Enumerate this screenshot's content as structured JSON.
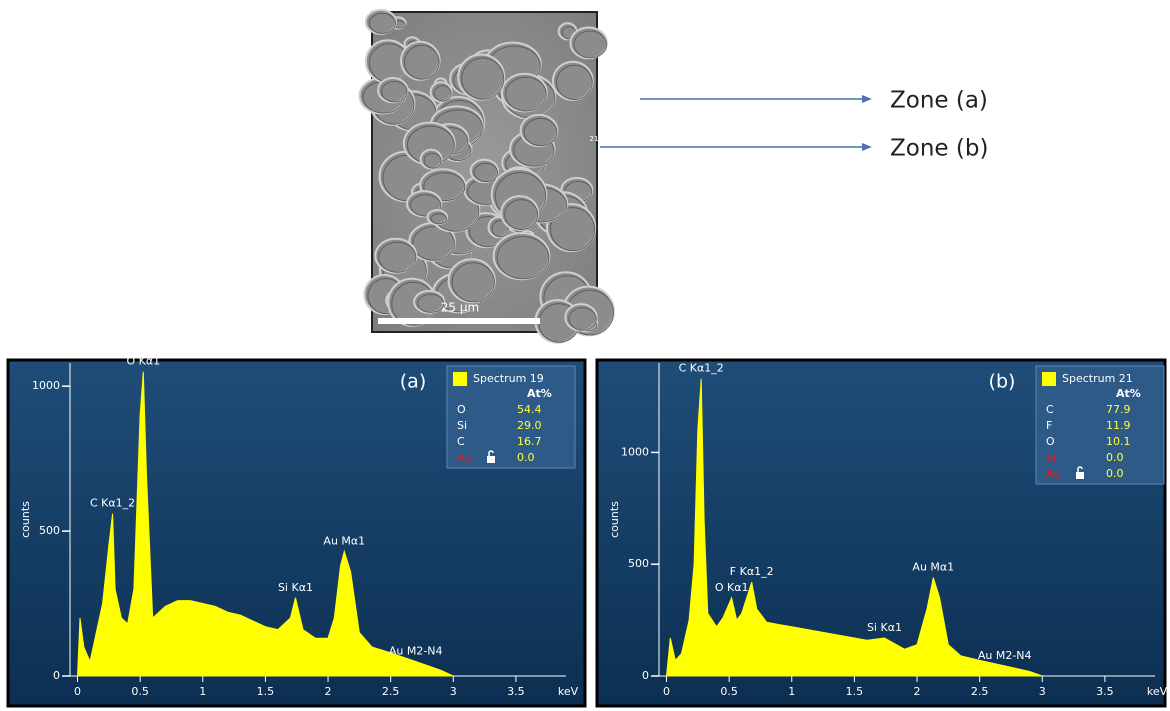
{
  "figure": {
    "scale_bar": "25 µm",
    "spots": [
      "19",
      "21"
    ],
    "zones": [
      "Zone (a)",
      "Zone (b)"
    ]
  },
  "chart_data": [
    {
      "type": "area",
      "panel_label": "(a)",
      "y_label": "counts",
      "x_label": "keV",
      "color": "#ffff00",
      "xlim": [
        -0.06,
        3.9
      ],
      "ylim": [
        0,
        1080
      ],
      "xticks": [
        0,
        0.5,
        1,
        1.5,
        2,
        2.5,
        3,
        3.5
      ],
      "yticks": [
        0,
        500,
        1000
      ],
      "x": [
        0,
        0.02,
        0.05,
        0.1,
        0.15,
        0.2,
        0.25,
        0.28,
        0.3,
        0.35,
        0.4,
        0.45,
        0.5,
        0.525,
        0.55,
        0.6,
        0.7,
        0.8,
        0.9,
        1.0,
        1.1,
        1.2,
        1.3,
        1.4,
        1.5,
        1.6,
        1.7,
        1.74,
        1.8,
        1.9,
        2.0,
        2.05,
        2.1,
        2.13,
        2.18,
        2.25,
        2.35,
        2.5,
        2.7,
        2.9,
        3.0
      ],
      "values": [
        0,
        200,
        100,
        50,
        150,
        250,
        450,
        560,
        300,
        200,
        180,
        300,
        900,
        1050,
        700,
        200,
        240,
        260,
        260,
        250,
        240,
        220,
        210,
        190,
        170,
        160,
        200,
        270,
        160,
        130,
        130,
        200,
        380,
        430,
        360,
        150,
        100,
        80,
        50,
        20,
        0
      ],
      "annotations": [
        {
          "text": "O Kα1",
          "x": 0.525
        },
        {
          "text": "C Kα1_2",
          "x": 0.28
        },
        {
          "text": "Si Kα1",
          "x": 1.74
        },
        {
          "text": "Au Mα1",
          "x": 2.13
        },
        {
          "text": "Au M2-N4",
          "x": 2.7
        }
      ],
      "legend": {
        "title": "Spectrum 19",
        "header": "At%",
        "rows": [
          {
            "element": "O",
            "at_pct": "54.4",
            "color": "#ffffff"
          },
          {
            "element": "Si",
            "at_pct": "29.0",
            "color": "#ffffff"
          },
          {
            "element": "C",
            "at_pct": "16.7",
            "color": "#ffffff"
          },
          {
            "element": "Au",
            "at_pct": "0.0",
            "color": "#e02020",
            "locked": true
          }
        ]
      }
    },
    {
      "type": "area",
      "panel_label": "(b)",
      "y_label": "counts",
      "x_label": "keV",
      "color": "#ffff00",
      "xlim": [
        -0.06,
        3.9
      ],
      "ylim": [
        0,
        1400
      ],
      "xticks": [
        0,
        0.5,
        1,
        1.5,
        2,
        2.5,
        3,
        3.5
      ],
      "yticks": [
        0,
        500,
        1000
      ],
      "x": [
        0,
        0.03,
        0.07,
        0.12,
        0.18,
        0.22,
        0.25,
        0.277,
        0.3,
        0.33,
        0.4,
        0.45,
        0.52,
        0.56,
        0.6,
        0.68,
        0.72,
        0.8,
        0.9,
        1.0,
        1.2,
        1.4,
        1.6,
        1.74,
        1.9,
        2.0,
        2.08,
        2.13,
        2.18,
        2.25,
        2.35,
        2.5,
        2.7,
        2.9,
        3.0
      ],
      "values": [
        0,
        170,
        70,
        100,
        250,
        500,
        1100,
        1330,
        700,
        280,
        220,
        260,
        350,
        250,
        280,
        420,
        300,
        240,
        230,
        220,
        200,
        180,
        160,
        170,
        120,
        140,
        300,
        440,
        350,
        140,
        90,
        70,
        45,
        20,
        0
      ],
      "annotations": [
        {
          "text": "C Kα1_2",
          "x": 0.277
        },
        {
          "text": "O Kα1",
          "x": 0.52
        },
        {
          "text": "F Kα1_2",
          "x": 0.68
        },
        {
          "text": "Si Kα1",
          "x": 1.74
        },
        {
          "text": "Au Mα1",
          "x": 2.13
        },
        {
          "text": "Au M2-N4",
          "x": 2.7
        }
      ],
      "legend": {
        "title": "Spectrum 21",
        "header": "At%",
        "rows": [
          {
            "element": "C",
            "at_pct": "77.9",
            "color": "#ffffff"
          },
          {
            "element": "F",
            "at_pct": "11.9",
            "color": "#ffffff"
          },
          {
            "element": "O",
            "at_pct": "10.1",
            "color": "#ffffff"
          },
          {
            "element": "Si",
            "at_pct": "0.0",
            "color": "#e02020"
          },
          {
            "element": "Au",
            "at_pct": "0.0",
            "color": "#e02020",
            "locked": true
          }
        ]
      }
    }
  ]
}
